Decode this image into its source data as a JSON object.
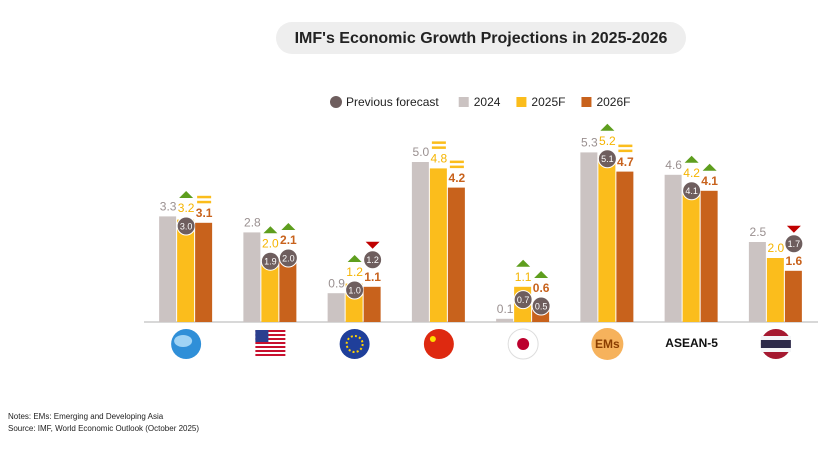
{
  "chart_data": {
    "type": "bar",
    "title": "IMF's Economic Growth Projections in 2025-2026",
    "categories": [
      null,
      null,
      null,
      null,
      null,
      "EMs",
      "ASEAN-5",
      null
    ],
    "ylim": [
      0,
      6
    ],
    "previous_forecast": {
      "name": "Previous forecast",
      "color": "#6e5e5e"
    },
    "series": [
      {
        "name": "2024",
        "color": "#cbc3c2",
        "label_color": "#9a9090",
        "values": [
          3.3,
          2.8,
          0.9,
          5.0,
          0.1,
          5.3,
          4.6,
          2.5
        ],
        "value_labels": [
          "3.3",
          "2.8",
          "0.9",
          "5.0",
          "0.1",
          "5.3",
          "4.6",
          "2.5"
        ]
      },
      {
        "name": "2025F",
        "color": "#fbbd1c",
        "label_color": "#f5b400",
        "values": [
          3.2,
          2.0,
          1.2,
          4.8,
          1.1,
          5.2,
          4.2,
          2.0
        ],
        "value_labels": [
          "3.2",
          "2.0",
          "1.2",
          "4.8",
          "1.1",
          "5.2",
          "4.2",
          "2.0"
        ],
        "previous": [
          3.0,
          1.9,
          1.0,
          null,
          0.7,
          5.1,
          4.1,
          null
        ],
        "previous_labels": [
          "3.0",
          "1.9",
          "1.0",
          null,
          "0.7",
          "5.1",
          "4.1",
          null
        ],
        "revision": [
          "up",
          "up",
          "up",
          "same",
          "up",
          "up",
          "up",
          null
        ]
      },
      {
        "name": "2026F",
        "color": "#c8621c",
        "label_color": "#c8621c",
        "values": [
          3.1,
          2.1,
          1.1,
          4.2,
          0.6,
          4.7,
          4.1,
          1.6
        ],
        "value_labels": [
          "3.1",
          "2.1",
          "1.1",
          "4.2",
          "0.6",
          "4.7",
          "4.1",
          "1.6"
        ],
        "previous": [
          null,
          2.0,
          1.2,
          null,
          0.5,
          null,
          null,
          1.7
        ],
        "previous_labels": [
          null,
          "2.0",
          "1.2",
          null,
          "0.5",
          null,
          null,
          "1.7"
        ],
        "revision": [
          "same",
          "up",
          "down",
          "same",
          "up",
          "same",
          "up",
          "down"
        ]
      }
    ],
    "notes": [
      "Notes: EMs: Emerging and Developing Asia",
      "Source: IMF, World Economic Outlook (October 2025)"
    ]
  }
}
